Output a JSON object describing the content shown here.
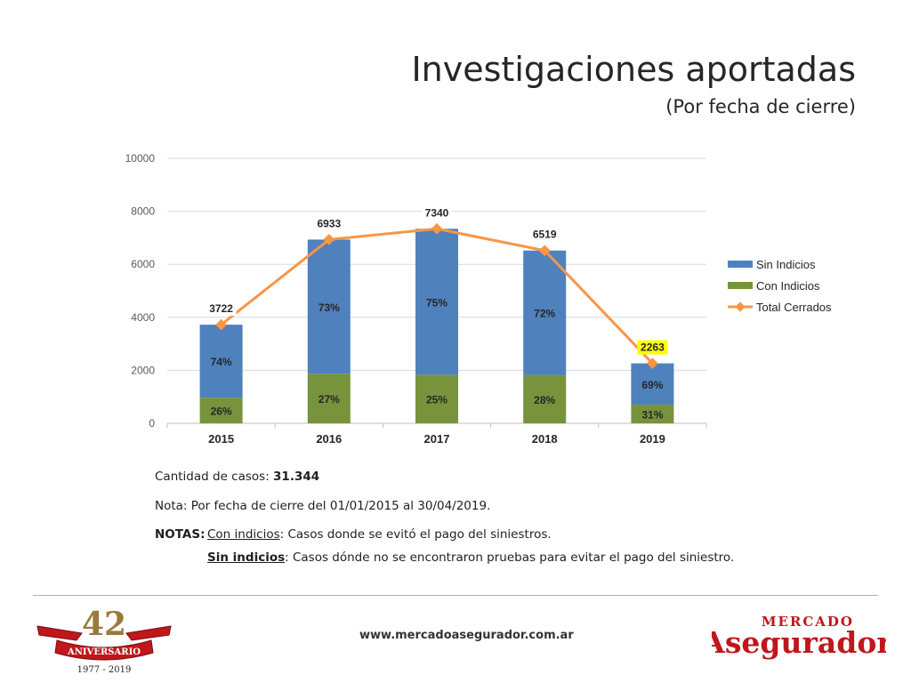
{
  "header": {
    "title": "Investigaciones aportadas",
    "subtitle": "(Por fecha de cierre)"
  },
  "chart_data": {
    "type": "bar",
    "stacked": true,
    "categories": [
      "2015",
      "2016",
      "2017",
      "2018",
      "2019"
    ],
    "ylim": [
      0,
      10000
    ],
    "yticks": [
      "0",
      "2000",
      "4000",
      "6000",
      "8000",
      "10000"
    ],
    "grid": true,
    "legend_position": "right",
    "series": [
      {
        "name": "Sin Indicios",
        "type": "bar",
        "color": "#4f81bd",
        "values": [
          2754,
          5061,
          5505,
          4694,
          1561
        ],
        "labels": [
          "74%",
          "73%",
          "75%",
          "72%",
          "69%"
        ]
      },
      {
        "name": "Con Indicios",
        "type": "bar",
        "color": "#77933c",
        "values": [
          968,
          1872,
          1835,
          1825,
          702
        ],
        "labels": [
          "26%",
          "27%",
          "25%",
          "28%",
          "31%"
        ]
      },
      {
        "name": "Total Cerrados",
        "type": "line",
        "color": "#f79646",
        "values": [
          3722,
          6933,
          7340,
          6519,
          2263
        ],
        "labels": [
          "3722",
          "6933",
          "7340",
          "6519",
          "2263"
        ],
        "highlighted_label_index": 4,
        "highlight_color": "#ffff00"
      }
    ]
  },
  "notes": {
    "cases_label": "Cantidad de casos: ",
    "cases_value": "31.344",
    "nota": "Nota: Por fecha de cierre del 01/01/2015 al 30/04/2019.",
    "notas_label": "NOTAS:",
    "con_term": "Con indicios",
    "con_text": ": Casos donde se evitó el pago del siniestros.",
    "sin_term": "Sin indicios",
    "sin_text": ": Casos dónde no se encontraron pruebas para evitar el pago del siniestro."
  },
  "footer": {
    "url": "www.mercadoasegurador.com.ar",
    "anniversary_number": "42",
    "anniversary_banner": "ANIVERSARIO",
    "anniversary_years": "1977 - 2019",
    "brand_top": "MERCADO",
    "brand_main": "Asegurador"
  },
  "colors": {
    "brand_red": "#c0171c",
    "gold": "#9a7a3c"
  }
}
